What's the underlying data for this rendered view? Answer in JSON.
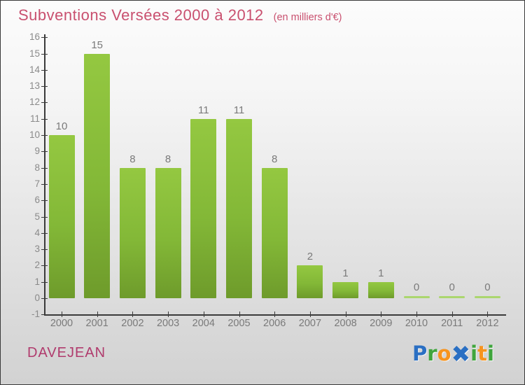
{
  "header": {
    "title": "Subventions Versées 2000 à 2012",
    "subtitle": "(en milliers d'€)",
    "title_color": "#c9506f"
  },
  "chart_data": {
    "type": "bar",
    "title": "Subventions Versées 2000 à 2012",
    "subtitle": "(en milliers d'€)",
    "categories": [
      "2000",
      "2001",
      "2002",
      "2003",
      "2004",
      "2005",
      "2006",
      "2007",
      "2008",
      "2009",
      "2010",
      "2011",
      "2012"
    ],
    "values": [
      10,
      15,
      8,
      8,
      11,
      11,
      8,
      2,
      1,
      1,
      0,
      0,
      0
    ],
    "xlabel": "",
    "ylabel": "",
    "ylim": [
      -1,
      16
    ],
    "ytick_step": 1,
    "grid": false,
    "legend": null,
    "bar_color_top": "#94c841",
    "bar_color_bottom": "#6e9b2b",
    "zero_bar_color": "#abd66e",
    "axis_color": "#3a3a3a",
    "tick_label_color": "#8a8a8a",
    "value_label_color": "#7a7a7a"
  },
  "footer": {
    "location": "DAVEJEAN",
    "location_color": "#b03b6d",
    "logo_name": "Proxiti",
    "logo_letters": [
      {
        "char": "P",
        "color": "#2a6fc3",
        "big": false
      },
      {
        "char": "r",
        "color": "#3fa53c",
        "big": false
      },
      {
        "char": "o",
        "color": "#f7941e",
        "big": false
      },
      {
        "char": "✖",
        "color": "#2a6fc3",
        "big": true
      },
      {
        "char": "i",
        "color": "#3fa53c",
        "big": false
      },
      {
        "char": "t",
        "color": "#f7941e",
        "big": false
      },
      {
        "char": "i",
        "color": "#3fa53c",
        "big": false
      }
    ]
  }
}
